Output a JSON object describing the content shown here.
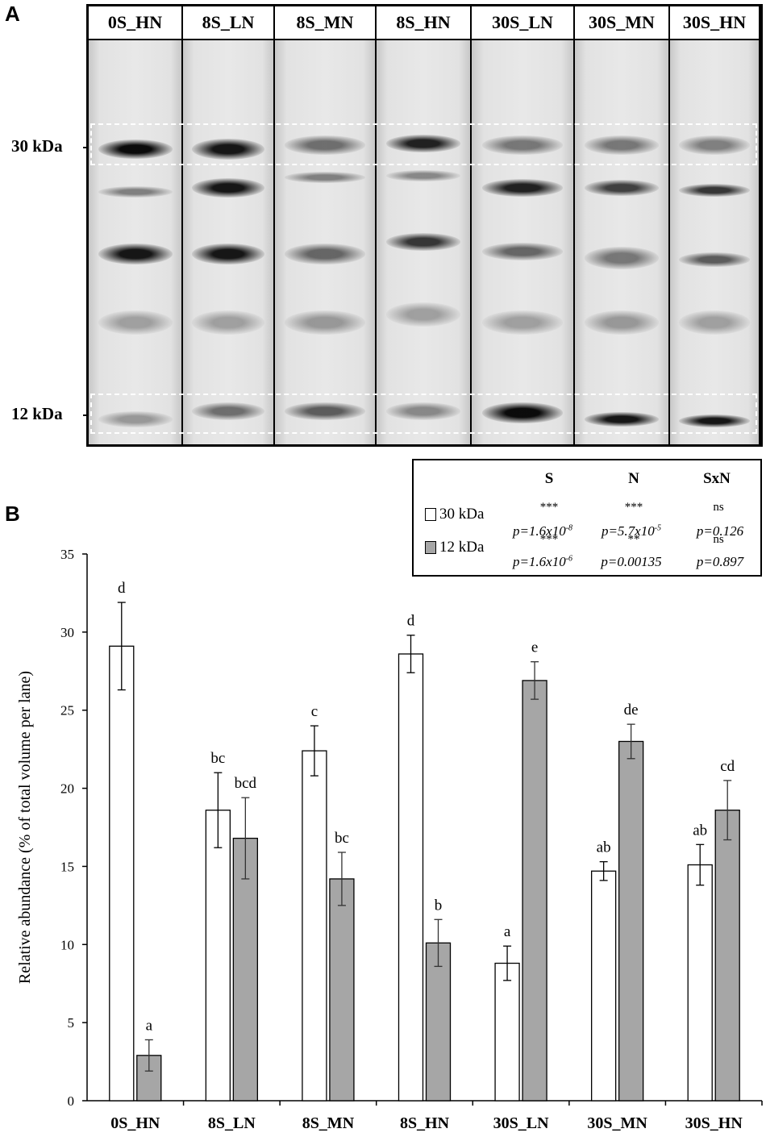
{
  "panel_a_label": "A",
  "panel_b_label": "B",
  "blot": {
    "lanes": [
      "0S_HN",
      "8S_LN",
      "8S_MN",
      "8S_HN",
      "30S_LN",
      "30S_MN",
      "30S_HN"
    ],
    "markers": [
      "30 kDa",
      "12 kDa"
    ]
  },
  "stats_table": {
    "headers": [
      "S",
      "N",
      "SxN"
    ],
    "rows": [
      {
        "label": "30 kDa",
        "color": "#ffffff",
        "sig": [
          "***",
          "***",
          "ns"
        ],
        "p": [
          "p=1.6x10",
          "p=5.7x10",
          "p=0.126"
        ],
        "exp": [
          "-8",
          "-5",
          ""
        ]
      },
      {
        "label": "12 kDa",
        "color": "#a6a6a6",
        "sig": [
          "***",
          "**",
          "ns"
        ],
        "p": [
          "p=1.6x10",
          "p=0.00135",
          "p=0.897"
        ],
        "exp": [
          "-6",
          "",
          ""
        ]
      }
    ]
  },
  "chart_data": {
    "type": "bar",
    "categories": [
      "0S_HN",
      "8S_LN",
      "8S_MN",
      "8S_HN",
      "30S_LN",
      "30S_MN",
      "30S_HN"
    ],
    "ylabel": "Relative abundance (% of total volume per lane)",
    "ylim": [
      0,
      35
    ],
    "yticks": [
      0,
      5,
      10,
      15,
      20,
      25,
      30,
      35
    ],
    "series": [
      {
        "name": "30 kDa",
        "color": "#ffffff",
        "values": [
          29.1,
          18.6,
          22.4,
          28.6,
          8.8,
          14.7,
          15.1
        ],
        "errors": [
          2.8,
          2.4,
          1.6,
          1.2,
          1.1,
          0.6,
          1.3
        ],
        "letters": [
          "d",
          "bc",
          "c",
          "d",
          "a",
          "ab",
          "ab"
        ]
      },
      {
        "name": "12 kDa",
        "color": "#a6a6a6",
        "values": [
          2.9,
          16.8,
          14.2,
          10.1,
          26.9,
          23.0,
          18.6
        ],
        "errors": [
          1.0,
          2.6,
          1.7,
          1.5,
          1.2,
          1.1,
          1.9
        ],
        "letters": [
          "a",
          "bcd",
          "bc",
          "b",
          "e",
          "de",
          "cd"
        ]
      }
    ]
  }
}
